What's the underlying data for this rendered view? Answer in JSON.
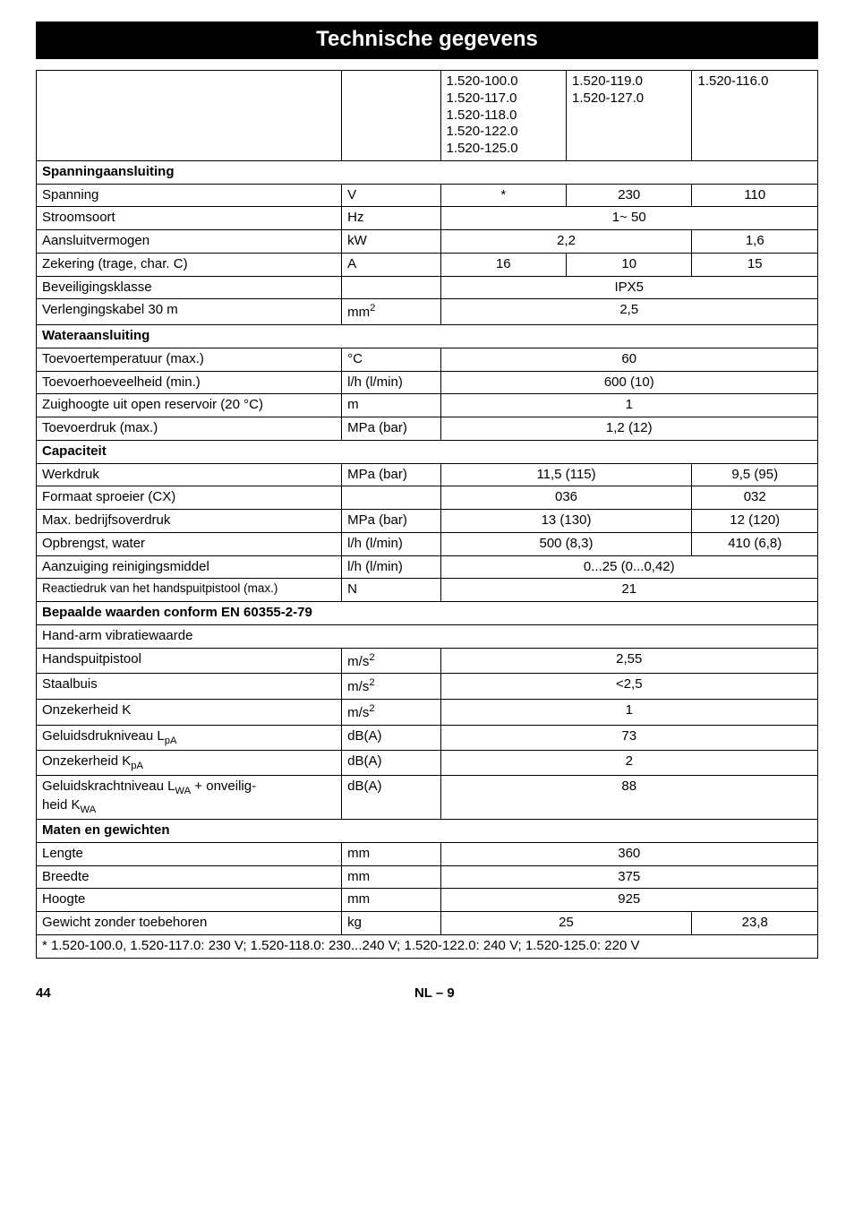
{
  "title": "Technische gegevens",
  "header_cols": {
    "c1": "1.520-100.0\n1.520-117.0\n1.520-118.0\n1.520-122.0\n1.520-125.0",
    "c2": "1.520-119.0\n1.520-127.0",
    "c3": "1.520-116.0"
  },
  "sections": {
    "spanningaansluiting": "Spanningaansluiting",
    "wateraansluiting": "Wateraansluiting",
    "capaciteit": "Capaciteit",
    "bepaalde": "Bepaalde waarden conform EN 60355-2-79",
    "handarm": "Hand-arm vibratiewaarde",
    "maten": "Maten en gewichten"
  },
  "rows": {
    "spanning": {
      "label": "Spanning",
      "unit": "V",
      "v1": "*",
      "v2": "230",
      "v3": "110"
    },
    "stroomsoort": {
      "label": "Stroomsoort",
      "unit": "Hz",
      "v": "1~ 50"
    },
    "aansluitvermogen": {
      "label": "Aansluitvermogen",
      "unit": "kW",
      "v12": "2,2",
      "v3": "1,6"
    },
    "zekering": {
      "label": "Zekering (trage, char. C)",
      "unit": "A",
      "v1": "16",
      "v2": "10",
      "v3": "15"
    },
    "beveiligingsklasse": {
      "label": "Beveiligingsklasse",
      "unit": "",
      "v": "IPX5"
    },
    "verlengingskabel": {
      "label": "Verlengingskabel 30 m",
      "unit": "mm²",
      "v": "2,5"
    },
    "toevoertemp": {
      "label": "Toevoertemperatuur (max.)",
      "unit": "°C",
      "v": "60"
    },
    "toevoerhoev": {
      "label": "Toevoerhoeveelheid (min.)",
      "unit": "l/h (l/min)",
      "v": "600 (10)"
    },
    "zuighoogte": {
      "label": "Zuighoogte uit open reservoir (20 °C)",
      "unit": "m",
      "v": "1"
    },
    "toevoerdruk": {
      "label": "Toevoerdruk (max.)",
      "unit": "MPa (bar)",
      "v": "1,2 (12)"
    },
    "werkdruk": {
      "label": "Werkdruk",
      "unit": "MPa (bar)",
      "v12": "11,5 (115)",
      "v3": "9,5 (95)"
    },
    "formaat": {
      "label": "Formaat sproeier (CX)",
      "unit": "",
      "v12": "036",
      "v3": "032"
    },
    "maxbedrijf": {
      "label": "Max. bedrijfsoverdruk",
      "unit": "MPa (bar)",
      "v12": "13 (130)",
      "v3": "12 (120)"
    },
    "opbrengst": {
      "label": "Opbrengst, water",
      "unit": "l/h (l/min)",
      "v12": "500 (8,3)",
      "v3": "410 (6,8)"
    },
    "aanzuiging": {
      "label": "Aanzuiging reinigingsmiddel",
      "unit": "l/h (l/min)",
      "v": "0...25 (0...0,42)"
    },
    "reactiedruk": {
      "label": "Reactiedruk van het handspuitpistool (max.)",
      "unit": "N",
      "v": "21"
    },
    "handspuitpistool": {
      "label": "Handspuitpistool",
      "unit": "m/s²",
      "v": "2,55"
    },
    "staalbuis": {
      "label": "Staalbuis",
      "unit": "m/s²",
      "v": "<2,5"
    },
    "onzekerheidk": {
      "label": "Onzekerheid K",
      "unit": "m/s²",
      "v": "1"
    },
    "geluidsdruk": {
      "label_prefix": "Geluidsdrukniveau L",
      "label_sub": "pA",
      "unit": "dB(A)",
      "v": "73"
    },
    "onzekerheidkpa": {
      "label_prefix": "Onzekerheid K",
      "label_sub": "pA",
      "unit": "dB(A)",
      "v": "2"
    },
    "geluidskracht": {
      "label_prefix1": "Geluidskrachtniveau L",
      "label_sub1": "WA",
      "label_mid": " + onveilig-",
      "label_line2": "heid K",
      "label_sub2": "WA",
      "unit": "dB(A)",
      "v": "88"
    },
    "lengte": {
      "label": "Lengte",
      "unit": "mm",
      "v": "360"
    },
    "breedte": {
      "label": "Breedte",
      "unit": "mm",
      "v": "375"
    },
    "hoogte": {
      "label": "Hoogte",
      "unit": "mm",
      "v": "925"
    },
    "gewicht": {
      "label": "Gewicht zonder toebehoren",
      "unit": "kg",
      "v12": "25",
      "v3": "23,8"
    }
  },
  "footnote": "* 1.520-100.0, 1.520-117.0: 230 V; 1.520-118.0: 230...240 V; 1.520-122.0: 240 V; 1.520-125.0: 220 V",
  "footer": {
    "page": "44",
    "center": "NL  – 9"
  }
}
